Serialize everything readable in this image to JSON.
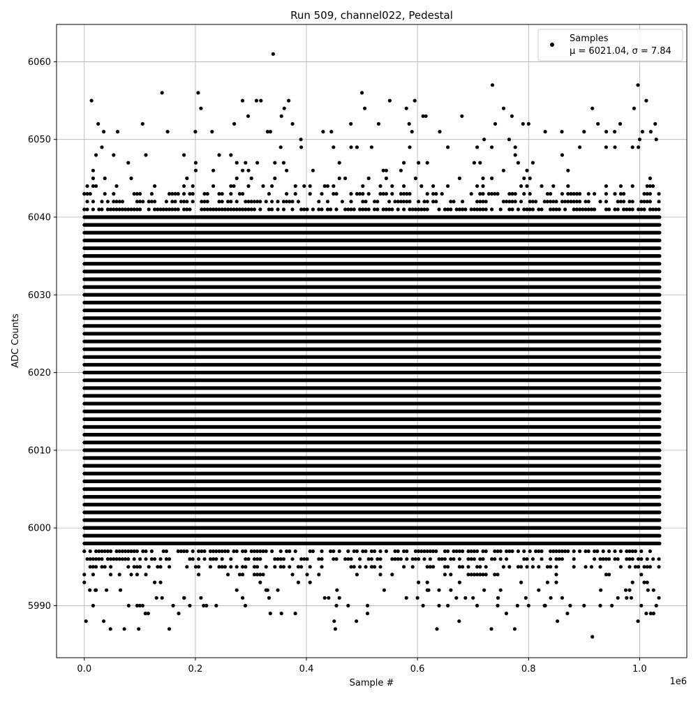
{
  "chart_data": {
    "type": "scatter",
    "title": "Run 509, channel022, Pedestal",
    "xlabel": "Sample #",
    "ylabel": "ADC Counts",
    "x_multiplier": "1e6",
    "xlim": [
      -0.05,
      1.085
    ],
    "ylim": [
      5983.3,
      6064.8
    ],
    "grid": true,
    "marker_color": "#000000",
    "x_ticks": [
      0.0,
      0.2,
      0.4,
      0.6,
      0.8,
      1.0
    ],
    "x_tick_labels": [
      "0.0",
      "0.2",
      "0.4",
      "0.6",
      "0.8",
      "1.0"
    ],
    "y_ticks": [
      5990,
      6000,
      6010,
      6020,
      6030,
      6040,
      6050,
      6060
    ],
    "y_tick_labels": [
      "5990",
      "6000",
      "6010",
      "6020",
      "6030",
      "6040",
      "6050",
      "6060"
    ],
    "legend": {
      "placement": "upper right",
      "entries": [
        {
          "label_line1": "Samples",
          "label_line2": "μ = 6021.04, σ = 7.84"
        }
      ]
    },
    "series": [
      {
        "name": "Samples",
        "x_range": [
          0.0,
          1.036
        ],
        "dense_y_range": [
          5995,
          6045
        ],
        "points": [
          [
            0.003,
            5988
          ],
          [
            0.035,
            5988
          ],
          [
            0.047,
            5987
          ],
          [
            0.072,
            5987
          ],
          [
            0.098,
            5987
          ],
          [
            0.153,
            5987
          ],
          [
            0.335,
            5989
          ],
          [
            0.355,
            5989
          ],
          [
            0.38,
            5989
          ],
          [
            0.45,
            5988
          ],
          [
            0.452,
            5987
          ],
          [
            0.49,
            5988
          ],
          [
            0.51,
            5989
          ],
          [
            0.635,
            5987
          ],
          [
            0.675,
            5988
          ],
          [
            0.733,
            5987
          ],
          [
            0.775,
            5987
          ],
          [
            0.852,
            5988
          ],
          [
            0.915,
            5986
          ],
          [
            0.997,
            5988
          ],
          [
            1.012,
            5989
          ],
          [
            1.02,
            5989
          ],
          [
            1.025,
            5989
          ],
          [
            1.03,
            5990
          ],
          [
            0.34,
            6061
          ],
          [
            0.013,
            6055
          ],
          [
            0.025,
            6052
          ],
          [
            0.035,
            6051
          ],
          [
            0.06,
            6051
          ],
          [
            0.105,
            6052
          ],
          [
            0.14,
            6056
          ],
          [
            0.15,
            6051
          ],
          [
            0.2,
            6051
          ],
          [
            0.205,
            6056
          ],
          [
            0.21,
            6054
          ],
          [
            0.23,
            6051
          ],
          [
            0.27,
            6052
          ],
          [
            0.285,
            6055
          ],
          [
            0.295,
            6053
          ],
          [
            0.31,
            6055
          ],
          [
            0.318,
            6055
          ],
          [
            0.33,
            6051
          ],
          [
            0.335,
            6051
          ],
          [
            0.355,
            6053
          ],
          [
            0.36,
            6054
          ],
          [
            0.368,
            6055
          ],
          [
            0.375,
            6052
          ],
          [
            0.39,
            6050
          ],
          [
            0.43,
            6051
          ],
          [
            0.445,
            6051
          ],
          [
            0.48,
            6052
          ],
          [
            0.5,
            6056
          ],
          [
            0.505,
            6054
          ],
          [
            0.53,
            6052
          ],
          [
            0.55,
            6055
          ],
          [
            0.58,
            6054
          ],
          [
            0.585,
            6052
          ],
          [
            0.59,
            6051
          ],
          [
            0.595,
            6055
          ],
          [
            0.61,
            6053
          ],
          [
            0.615,
            6053
          ],
          [
            0.64,
            6051
          ],
          [
            0.68,
            6053
          ],
          [
            0.72,
            6050
          ],
          [
            0.735,
            6057
          ],
          [
            0.74,
            6052
          ],
          [
            0.755,
            6054
          ],
          [
            0.765,
            6050
          ],
          [
            0.77,
            6053
          ],
          [
            0.79,
            6052
          ],
          [
            0.8,
            6052
          ],
          [
            0.83,
            6051
          ],
          [
            0.86,
            6051
          ],
          [
            0.9,
            6051
          ],
          [
            0.915,
            6054
          ],
          [
            0.925,
            6052
          ],
          [
            0.94,
            6051
          ],
          [
            0.955,
            6051
          ],
          [
            0.965,
            6052
          ],
          [
            0.99,
            6054
          ],
          [
            0.997,
            6057
          ],
          [
            1.0,
            6050
          ],
          [
            1.005,
            6051
          ],
          [
            1.012,
            6055
          ],
          [
            1.02,
            6051
          ],
          [
            1.028,
            6052
          ],
          [
            1.03,
            6050
          ],
          [
            0.0,
            5993
          ],
          [
            0.01,
            5992
          ],
          [
            0.02,
            5992
          ],
          [
            0.04,
            5992
          ],
          [
            0.065,
            5992
          ],
          [
            0.08,
            5990
          ],
          [
            0.1,
            5990
          ],
          [
            0.105,
            5990
          ],
          [
            0.11,
            5989
          ],
          [
            0.115,
            5989
          ],
          [
            0.13,
            5991
          ],
          [
            0.14,
            5991
          ],
          [
            0.16,
            5990
          ],
          [
            0.17,
            5989
          ],
          [
            0.18,
            5991
          ],
          [
            0.19,
            5990
          ],
          [
            0.21,
            5991
          ],
          [
            0.215,
            5990
          ],
          [
            0.22,
            5990
          ],
          [
            0.29,
            5990
          ],
          [
            0.33,
            5992
          ],
          [
            0.44,
            5991
          ],
          [
            0.455,
            5992
          ],
          [
            0.51,
            5990
          ],
          [
            0.54,
            5992
          ],
          [
            0.58,
            5991
          ],
          [
            0.6,
            5991
          ],
          [
            0.61,
            5990
          ],
          [
            0.62,
            5992
          ],
          [
            0.66,
            5992
          ],
          [
            0.67,
            5991
          ],
          [
            0.7,
            5991
          ],
          [
            0.72,
            5992
          ],
          [
            0.745,
            5991
          ],
          [
            0.76,
            5989
          ],
          [
            0.78,
            5990
          ],
          [
            0.795,
            5991
          ],
          [
            0.8,
            5990
          ],
          [
            0.83,
            5990
          ],
          [
            0.84,
            5991
          ],
          [
            0.87,
            5989
          ],
          [
            0.875,
            5990
          ],
          [
            0.9,
            5990
          ],
          [
            0.93,
            5992
          ],
          [
            0.95,
            5990
          ],
          [
            0.975,
            5992
          ],
          [
            0.985,
            5991
          ],
          [
            1.015,
            5992
          ],
          [
            1.025,
            5992
          ]
        ]
      }
    ]
  }
}
